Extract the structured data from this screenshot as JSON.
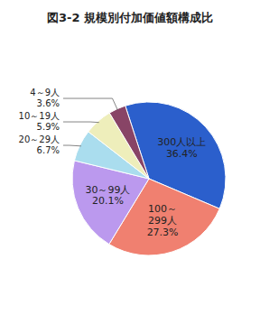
{
  "chart_data": {
    "type": "pie",
    "title": "図3-2 規模別付加価値額構成比",
    "categories": [
      "300人以上",
      "100～\n299人",
      "30～99人",
      "20～29人",
      "10～19人",
      "4～9人"
    ],
    "values": [
      36.4,
      27.3,
      20.1,
      6.7,
      5.9,
      3.6
    ],
    "value_labels": [
      "36.4%",
      "27.3%",
      "20.1%",
      "6.7%",
      "5.9%",
      "3.6%"
    ],
    "colors": [
      "#2B5FCC",
      "#F08070",
      "#BB99EE",
      "#AADDEE",
      "#EEEEBB",
      "#884466"
    ],
    "data_labels": true
  }
}
